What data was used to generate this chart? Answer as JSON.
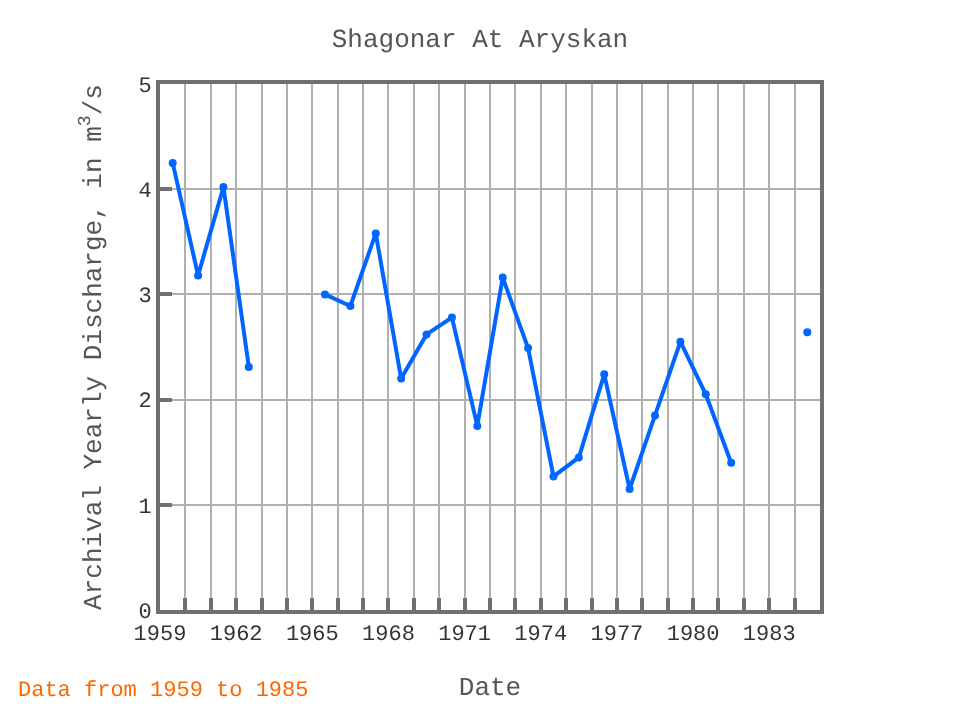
{
  "chart_data": {
    "type": "line",
    "title": "Shagonar At Aryskan",
    "xlabel": "Date",
    "ylabel": "Archival Yearly Discharge, in m$^{3}$/s",
    "annotations": [
      "Data from 1959 to 1985"
    ],
    "x": [
      1959.5,
      1960.5,
      1961.5,
      1962.5,
      1963.5,
      1964.5,
      1965.5,
      1966.5,
      1967.5,
      1968.5,
      1969.5,
      1970.5,
      1971.5,
      1972.5,
      1973.5,
      1974.5,
      1975.5,
      1976.5,
      1977.5,
      1978.5,
      1979.5,
      1980.5,
      1981.5,
      1982.5,
      1983.5,
      1984.5
    ],
    "series": [
      {
        "color": "#0066ff",
        "values": [
          4.25,
          3.18,
          4.02,
          2.31,
          null,
          null,
          3.0,
          2.89,
          3.58,
          2.2,
          2.62,
          2.78,
          1.75,
          3.16,
          2.49,
          1.27,
          1.45,
          2.24,
          1.15,
          1.85,
          2.55,
          2.05,
          1.4,
          null,
          null,
          2.64
        ]
      }
    ],
    "xlim": [
      1959,
      1985
    ],
    "xticks": [
      1959,
      {
        "value": 1960,
        "label": null
      },
      {
        "value": 1961,
        "label": null
      },
      1962,
      {
        "value": 1963,
        "label": null
      },
      {
        "value": 1964,
        "label": null
      },
      1965,
      {
        "value": 1966,
        "label": null
      },
      {
        "value": 1967,
        "label": null
      },
      1968,
      {
        "value": 1969,
        "label": null
      },
      {
        "value": 1970,
        "label": null
      },
      1971,
      {
        "value": 1972,
        "label": null
      },
      {
        "value": 1973,
        "label": null
      },
      1974,
      {
        "value": 1975,
        "label": null
      },
      {
        "value": 1976,
        "label": null
      },
      1977,
      {
        "value": 1978,
        "label": null
      },
      {
        "value": 1979,
        "label": null
      },
      1980,
      {
        "value": 1981,
        "label": null
      },
      {
        "value": 1982,
        "label": null
      },
      1983,
      {
        "value": 1984,
        "label": null
      }
    ],
    "ylim": [
      0,
      5
    ],
    "yticks": [
      0,
      1,
      2,
      3,
      4,
      5
    ],
    "grid": true,
    "marker": "circle",
    "line_style": "solid"
  }
}
